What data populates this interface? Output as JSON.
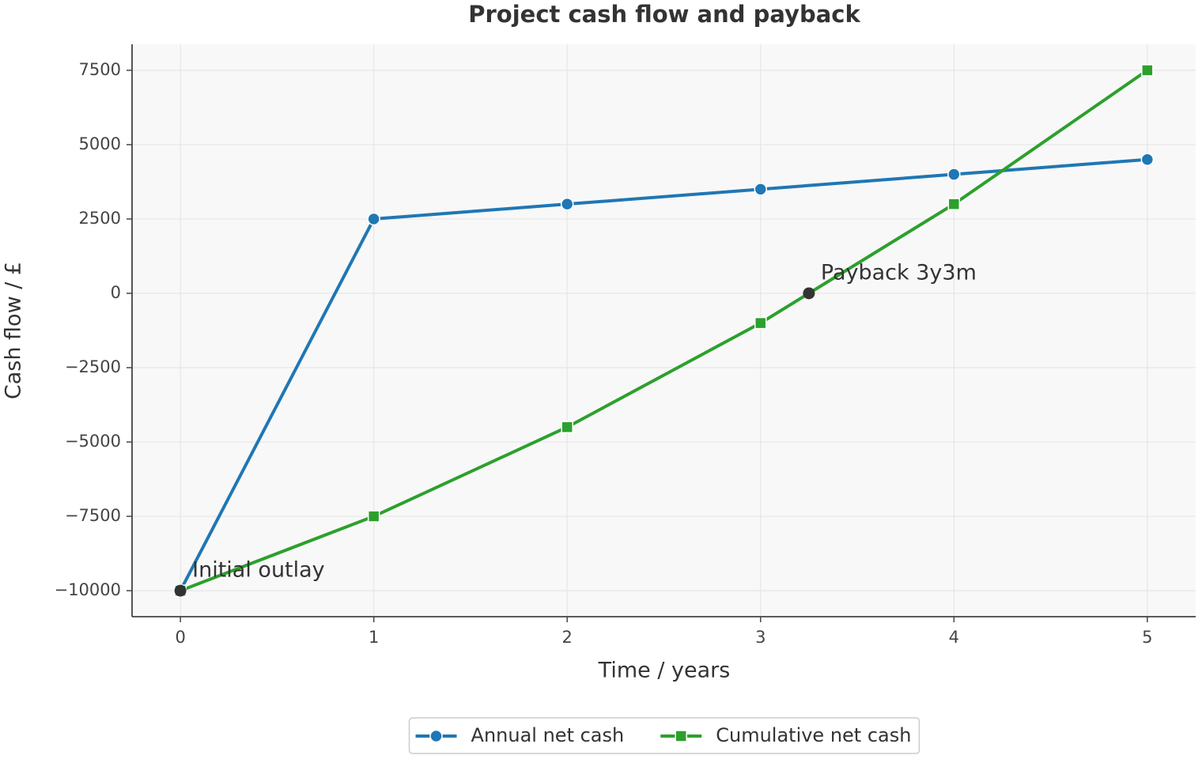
{
  "chart_data": {
    "type": "line",
    "title": "Project cash flow and payback",
    "x_label": "Time / years",
    "y_label": "Cash flow / £",
    "x": [
      0,
      1,
      2,
      3,
      4,
      5
    ],
    "series": [
      {
        "name": "Annual net cash",
        "color": "#1f77b4",
        "marker": "circle",
        "values": [
          -10000,
          2500,
          3000,
          3500,
          4000,
          4500
        ]
      },
      {
        "name": "Cumulative net cash",
        "color": "#2ca02c",
        "marker": "square",
        "values": [
          -10000,
          -7500,
          -4500,
          -1000,
          3000,
          7500
        ]
      }
    ],
    "annotations": [
      {
        "text": "Initial outlay",
        "x": 0,
        "y": -10000
      },
      {
        "text": "Payback 3y3m",
        "x": 3.25,
        "y": 0
      }
    ],
    "xlim": [
      -0.25,
      5.25
    ],
    "xticks": [
      0,
      1,
      2,
      3,
      4,
      5
    ],
    "ylim": [
      -10875,
      8375
    ],
    "yticks": [
      {
        "value": -10000,
        "label": "−10000"
      },
      {
        "value": -7500,
        "label": "−7500"
      },
      {
        "value": -5000,
        "label": "−5000"
      },
      {
        "value": -2500,
        "label": "−2500"
      },
      0,
      2500,
      5000,
      7500
    ],
    "grid": true,
    "legend": "bottom"
  }
}
